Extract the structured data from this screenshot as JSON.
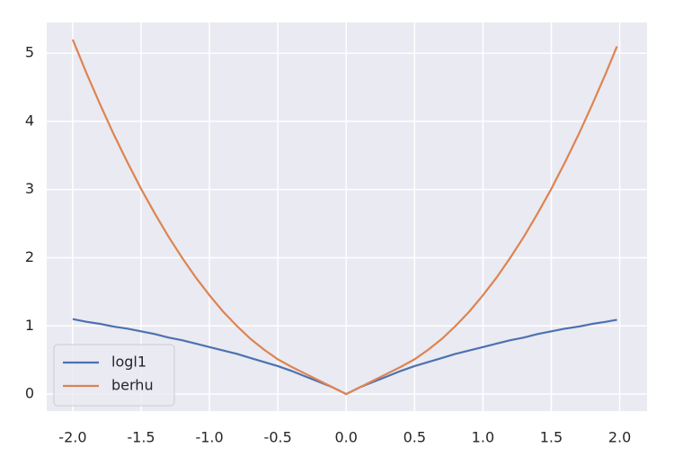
{
  "chart_data": {
    "type": "line",
    "x": [
      -2.0,
      -1.9,
      -1.8,
      -1.7,
      -1.6,
      -1.5,
      -1.4,
      -1.3,
      -1.2,
      -1.1,
      -1.0,
      -0.9,
      -0.8,
      -0.7,
      -0.6,
      -0.5,
      -0.4,
      -0.3,
      -0.2,
      -0.1,
      0.0,
      0.1,
      0.2,
      0.3,
      0.4,
      0.5,
      0.6,
      0.7,
      0.8,
      0.9,
      1.0,
      1.1,
      1.2,
      1.3,
      1.4,
      1.5,
      1.6,
      1.7,
      1.8,
      1.9,
      1.98
    ],
    "series": [
      {
        "name": "logl1",
        "color": "#4c72b0",
        "values": [
          1.1,
          1.06,
          1.03,
          0.99,
          0.96,
          0.92,
          0.88,
          0.83,
          0.79,
          0.74,
          0.69,
          0.64,
          0.59,
          0.53,
          0.47,
          0.41,
          0.34,
          0.26,
          0.18,
          0.1,
          0,
          0.1,
          0.18,
          0.26,
          0.34,
          0.41,
          0.47,
          0.53,
          0.59,
          0.64,
          0.69,
          0.74,
          0.79,
          0.83,
          0.88,
          0.92,
          0.96,
          0.99,
          1.03,
          1.06,
          1.09
        ]
      },
      {
        "name": "berhu",
        "color": "#dd8452",
        "values": [
          5.2,
          4.71,
          4.25,
          3.81,
          3.4,
          3.01,
          2.65,
          2.31,
          2.0,
          1.71,
          1.45,
          1.21,
          1.0,
          0.81,
          0.65,
          0.51,
          0.4,
          0.3,
          0.2,
          0.1,
          0,
          0.1,
          0.2,
          0.3,
          0.4,
          0.51,
          0.65,
          0.81,
          1.0,
          1.21,
          1.45,
          1.71,
          2.0,
          2.31,
          2.65,
          3.01,
          3.4,
          3.81,
          4.25,
          4.71,
          5.1
        ]
      }
    ],
    "xlim": [
      -2.19,
      2.2
    ],
    "xticks": [
      {
        "value": -2,
        "label": "-2.0"
      },
      {
        "value": -1.5,
        "label": "-1.5"
      },
      {
        "value": -1,
        "label": "-1.0"
      },
      {
        "value": -0.5,
        "label": "-0.5"
      },
      {
        "value": 0,
        "label": "0.0"
      },
      0.5,
      {
        "value": 1,
        "label": "1.0"
      },
      1.5,
      {
        "value": 2,
        "label": "2.0"
      }
    ],
    "ylim": [
      -0.25,
      5.45
    ],
    "yticks": [
      0,
      1,
      2,
      3,
      4,
      5
    ],
    "grid": true,
    "legend": "lower left"
  }
}
